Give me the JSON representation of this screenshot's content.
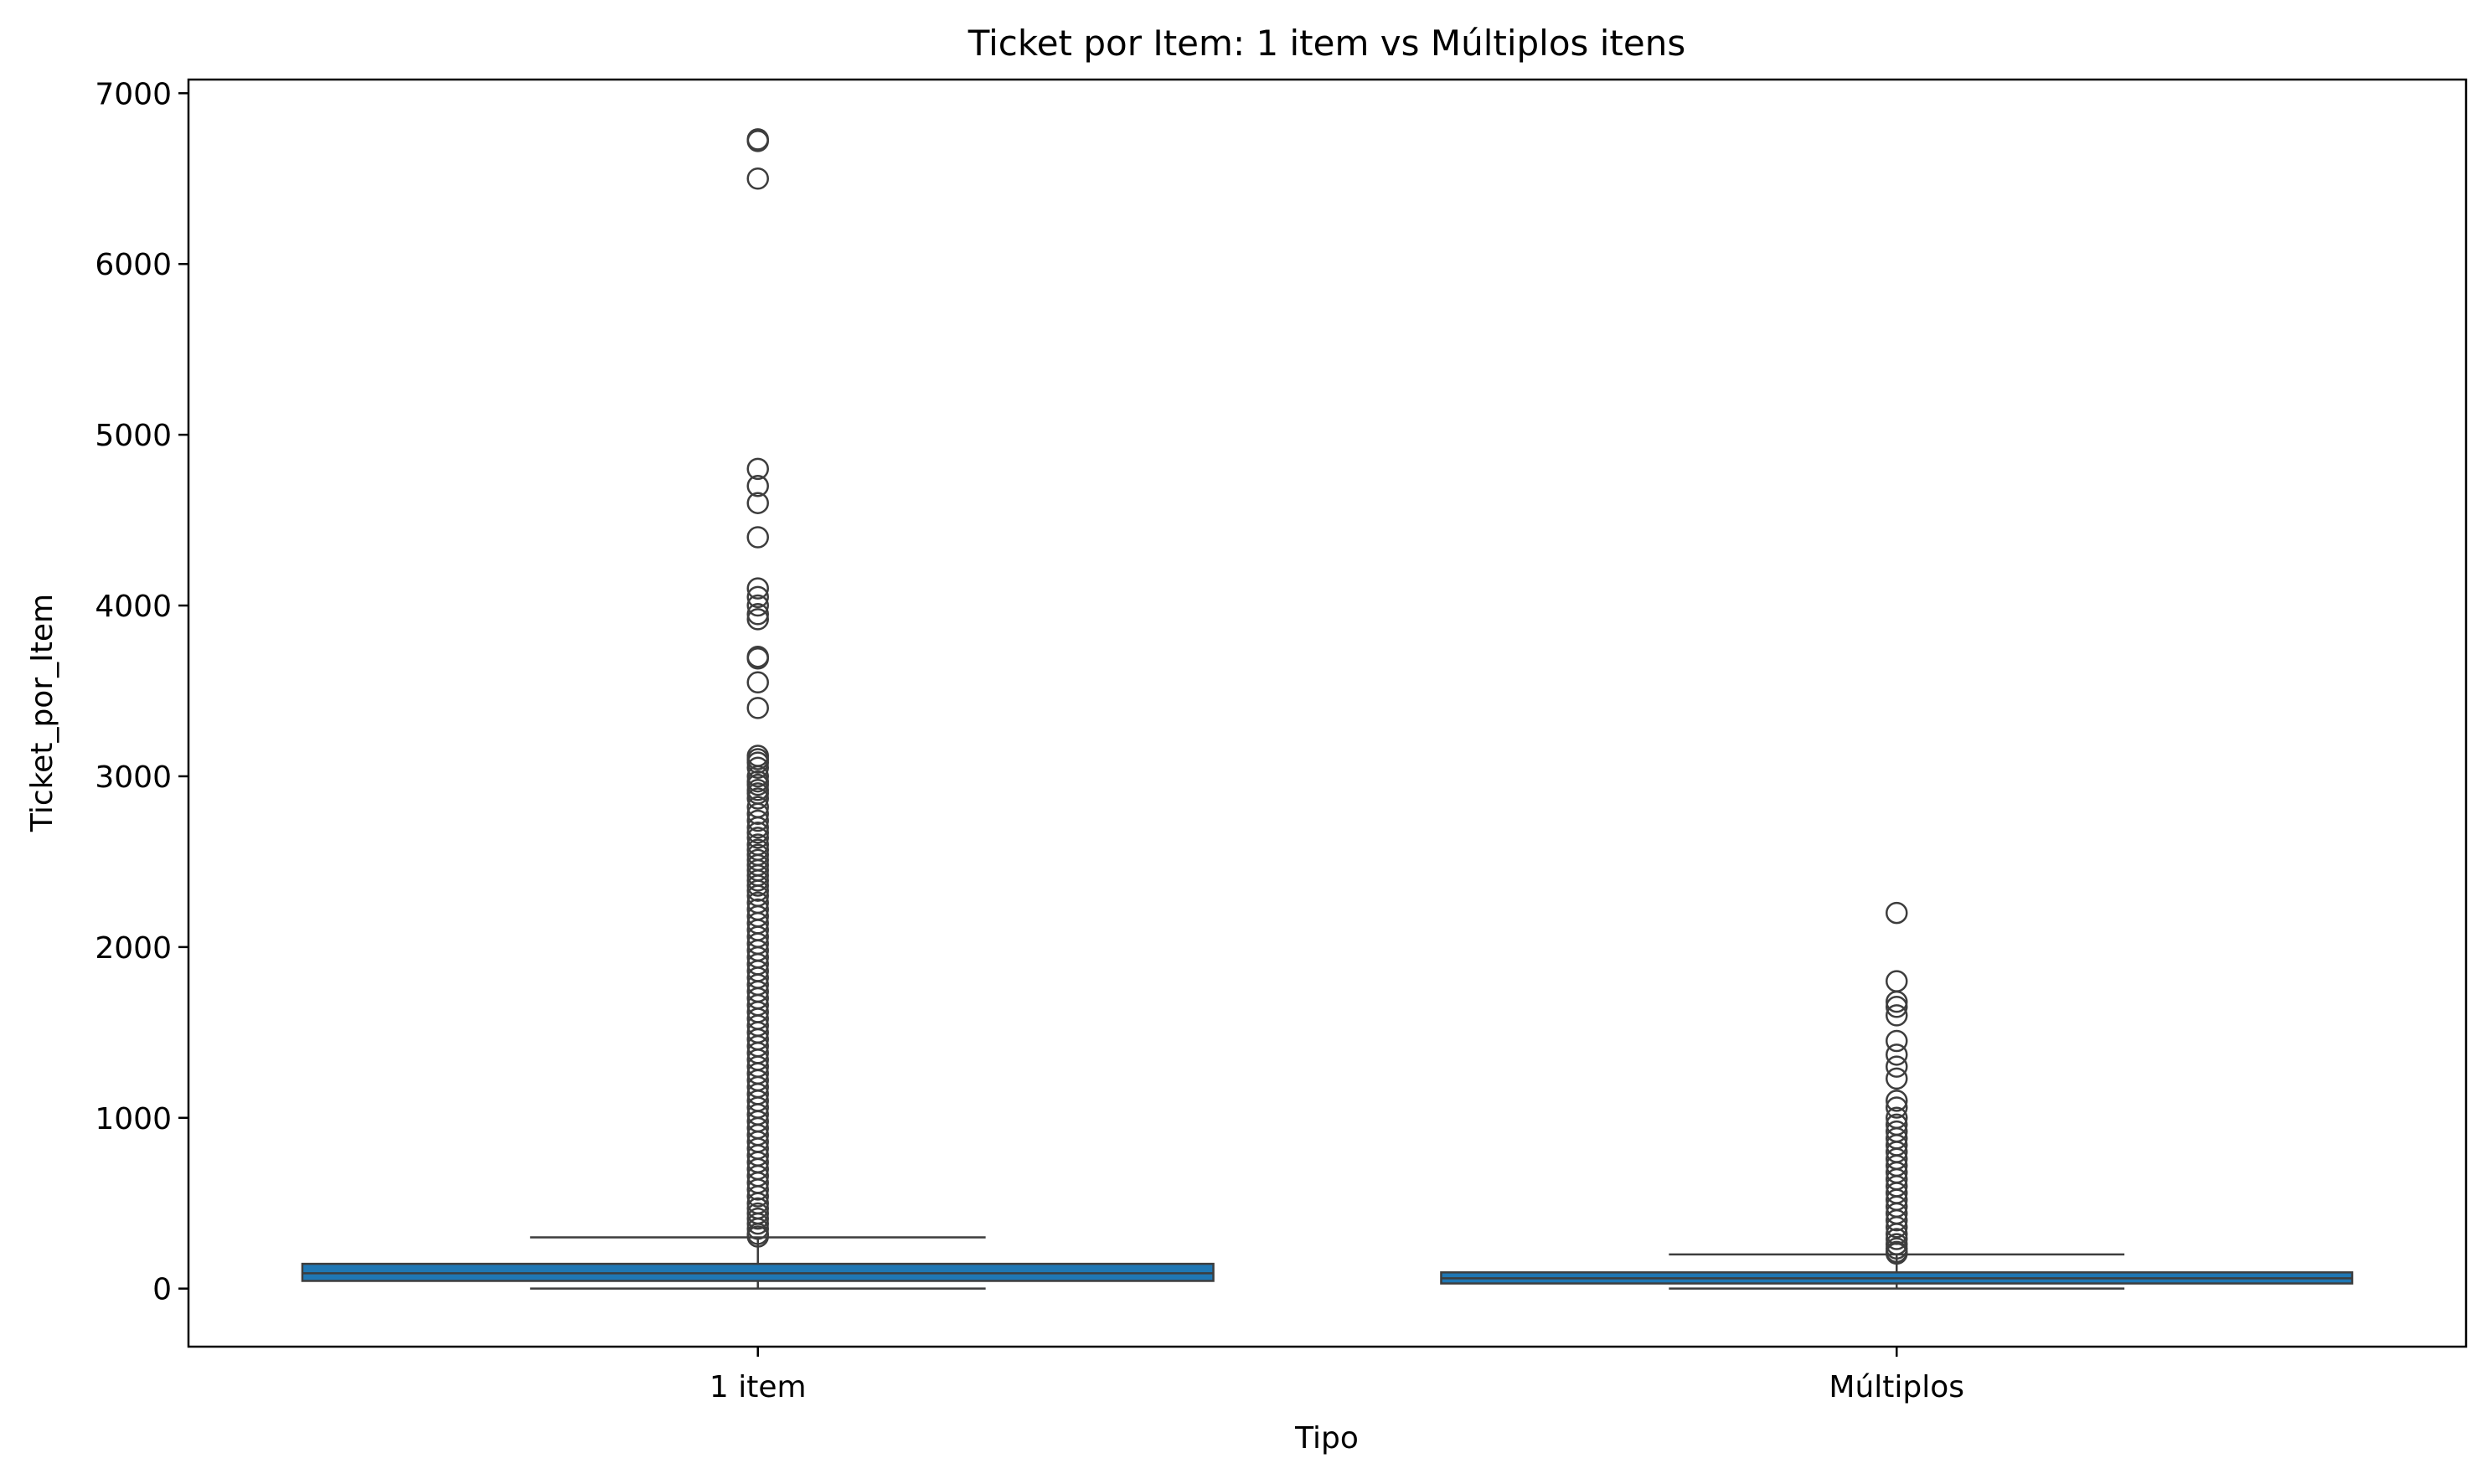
{
  "chart_data": {
    "type": "box",
    "title": "Ticket por Item: 1 item vs Múltiplos itens",
    "xlabel": "Tipo",
    "ylabel": "Ticket_por_Item",
    "categories": [
      "1 item",
      "Múltiplos"
    ],
    "ylim": [
      -340,
      7080
    ],
    "yticks": [
      0,
      1000,
      2000,
      3000,
      4000,
      5000,
      6000,
      7000
    ],
    "grid": false,
    "box_color": "#1f77b4",
    "edge_color": "#3d3d3d",
    "boxes": [
      {
        "category": "1 item",
        "whisker_low": 0,
        "q1": 45,
        "median": 90,
        "q3": 145,
        "whisker_high": 300,
        "outliers": [
          6730,
          6720,
          6500,
          4800,
          4700,
          4600,
          4400,
          4100,
          4050,
          4000,
          3950,
          3920,
          3700,
          3690,
          3550,
          3400,
          3120,
          3100,
          3080,
          3050,
          3000,
          2970,
          2950,
          2920,
          2900,
          2870,
          2820,
          2780,
          2740,
          2700,
          2670,
          2640,
          2600,
          2570,
          2540,
          2510,
          2480,
          2450,
          2420,
          2390,
          2360,
          2330,
          2300,
          2260,
          2220,
          2180,
          2140,
          2100,
          2060,
          2020,
          1980,
          1940,
          1900,
          1860,
          1820,
          1780,
          1740,
          1700,
          1660,
          1620,
          1580,
          1540,
          1500,
          1460,
          1420,
          1380,
          1340,
          1300,
          1260,
          1220,
          1180,
          1140,
          1100,
          1060,
          1020,
          980,
          940,
          900,
          860,
          820,
          780,
          740,
          700,
          660,
          620,
          580,
          540,
          500,
          470,
          440,
          410,
          380,
          350,
          320,
          305
        ]
      },
      {
        "category": "Múltiplos",
        "whisker_low": 0,
        "q1": 30,
        "median": 60,
        "q3": 95,
        "whisker_high": 200,
        "outliers": [
          2200,
          1800,
          1680,
          1650,
          1600,
          1450,
          1370,
          1300,
          1230,
          1100,
          1060,
          1000,
          960,
          920,
          880,
          840,
          800,
          760,
          720,
          680,
          640,
          600,
          560,
          520,
          480,
          440,
          400,
          360,
          320,
          290,
          260,
          235,
          215,
          205
        ]
      }
    ]
  }
}
